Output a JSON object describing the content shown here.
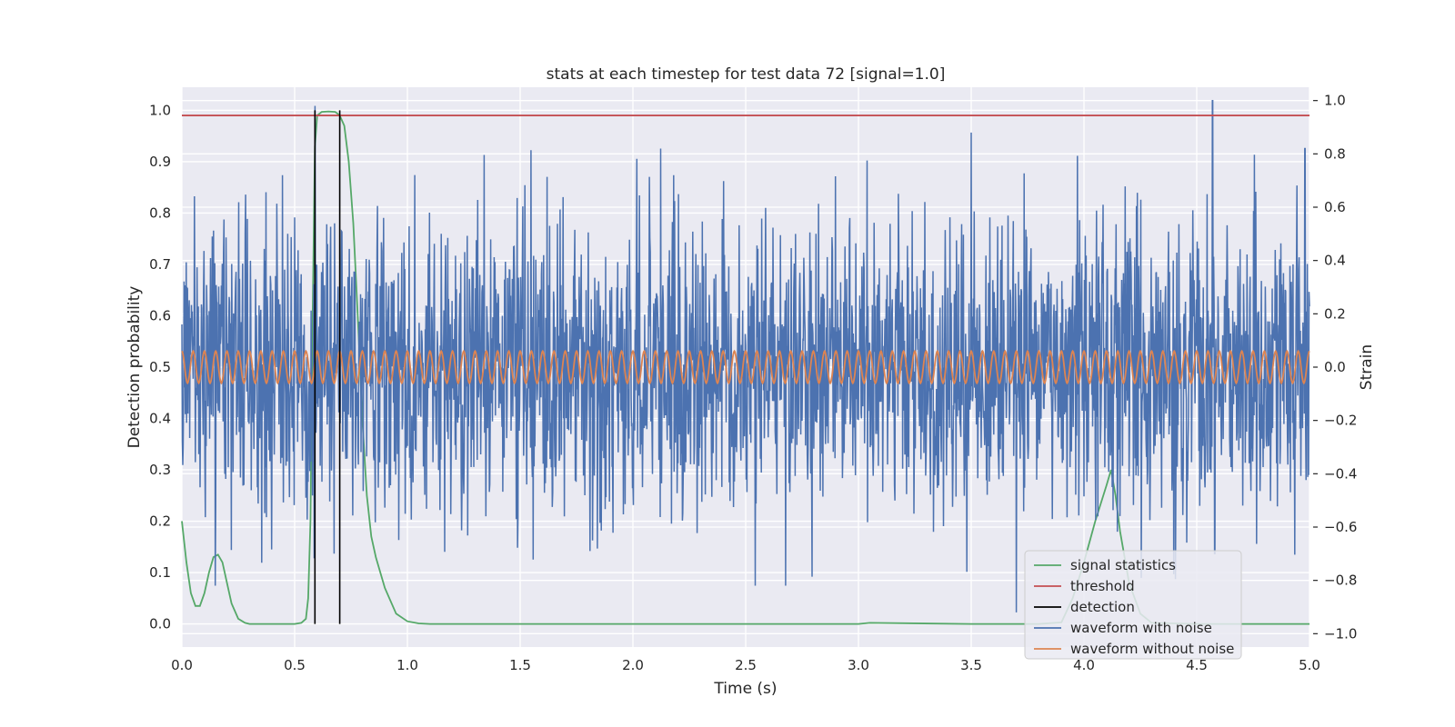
{
  "chart_data": {
    "type": "line",
    "title": "stats at each timestep for test data 72 [signal=1.0]",
    "xlabel": "Time (s)",
    "ylabel_left": "Detection probability",
    "ylabel_right": "Strain",
    "xlim": [
      0.0,
      5.0
    ],
    "ylim_left": [
      -0.045,
      1.045
    ],
    "ylim_right": [
      -1.05,
      1.05
    ],
    "xticks": [
      "0.0",
      "0.5",
      "1.0",
      "1.5",
      "2.0",
      "2.5",
      "3.0",
      "3.5",
      "4.0",
      "4.5",
      "5.0"
    ],
    "yticks_left": [
      "0.0",
      "0.1",
      "0.2",
      "0.3",
      "0.4",
      "0.5",
      "0.6",
      "0.7",
      "0.8",
      "0.9",
      "1.0"
    ],
    "yticks_right": [
      "−1.0",
      "−0.8",
      "−0.6",
      "−0.4",
      "−0.2",
      "0.0",
      "0.2",
      "0.4",
      "0.6",
      "0.8",
      "1.0"
    ],
    "grid": true,
    "legend_position": "bottom-right",
    "colors": {
      "signal_statistics": "#55a868",
      "threshold": "#c44e52",
      "detection": "#000000",
      "waveform_with_noise": "#4c72b0",
      "waveform_without_noise": "#dd8452",
      "axes_bg": "#eaeaf2",
      "grid": "#ffffff"
    },
    "series": [
      {
        "name": "signal statistics",
        "axis": "left",
        "x": [
          0.0,
          0.02,
          0.04,
          0.06,
          0.08,
          0.1,
          0.12,
          0.14,
          0.16,
          0.18,
          0.2,
          0.22,
          0.25,
          0.28,
          0.3,
          0.35,
          0.4,
          0.45,
          0.5,
          0.53,
          0.55,
          0.56,
          0.57,
          0.58,
          0.59,
          0.6,
          0.62,
          0.65,
          0.68,
          0.7,
          0.72,
          0.74,
          0.76,
          0.78,
          0.8,
          0.82,
          0.84,
          0.86,
          0.9,
          0.95,
          1.0,
          1.05,
          1.1,
          1.5,
          2.0,
          3.0,
          3.05,
          3.5,
          3.7,
          3.8,
          3.9,
          3.95,
          4.0,
          4.05,
          4.1,
          4.12,
          4.14,
          4.16,
          4.2,
          4.25,
          4.3,
          4.5,
          5.0
        ],
        "values": [
          0.2,
          0.12,
          0.06,
          0.035,
          0.035,
          0.06,
          0.1,
          0.13,
          0.135,
          0.12,
          0.08,
          0.04,
          0.01,
          0.002,
          0.0,
          0.0,
          0.0,
          0.0,
          0.0,
          0.002,
          0.01,
          0.05,
          0.2,
          0.6,
          0.93,
          0.99,
          0.997,
          0.998,
          0.997,
          0.99,
          0.97,
          0.9,
          0.78,
          0.6,
          0.4,
          0.25,
          0.17,
          0.13,
          0.07,
          0.02,
          0.005,
          0.001,
          0.0,
          0.0,
          0.0,
          0.0,
          0.002,
          0.0,
          0.0,
          0.0,
          0.003,
          0.05,
          0.12,
          0.2,
          0.27,
          0.3,
          0.25,
          0.18,
          0.08,
          0.02,
          0.002,
          0.0,
          0.0
        ]
      },
      {
        "name": "threshold",
        "axis": "left",
        "value": 0.99
      },
      {
        "name": "detection",
        "axis": "left",
        "x": [
          0.59,
          0.7
        ],
        "range": [
          0.0,
          1.0
        ]
      },
      {
        "name": "waveform with noise",
        "axis": "right",
        "noise_std": 0.27,
        "peak_points": [
          {
            "x": 0.59,
            "value": 0.98
          },
          {
            "x": 3.5,
            "value": 0.88
          },
          {
            "x": 3.7,
            "value": -0.92
          },
          {
            "x": 4.57,
            "value": 1.0
          },
          {
            "x": 4.58,
            "value": -0.7
          },
          {
            "x": 4.98,
            "value": 0.82
          }
        ]
      },
      {
        "name": "waveform without noise",
        "axis": "right",
        "amplitude": 0.06,
        "cycles": 100
      }
    ],
    "legend": [
      "signal statistics",
      "threshold",
      "detection",
      "waveform with noise",
      "waveform without noise"
    ]
  }
}
